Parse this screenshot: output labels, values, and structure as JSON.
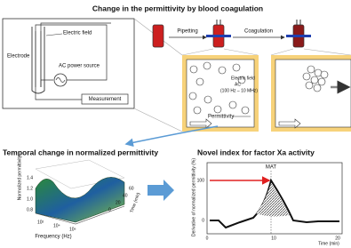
{
  "title": "Change in the permittivity by blood coagulation",
  "circuit": {
    "electric_field": "Electric field",
    "electrode": "Electrode",
    "ac_source": "AC power source",
    "measurement": "Measurement"
  },
  "steps": {
    "pipetting": "Pipetting",
    "coagulation": "Coagulation"
  },
  "panel": {
    "electric_field": "Electric field",
    "ac": "AC",
    "frequency_range": "(100 Hz – 10 MHz)",
    "permittivity": "Permittivity"
  },
  "left_plot": {
    "title": "Temporal change in normalized permittivity",
    "z_label": "Normalized permittivity",
    "z_ticks": [
      "1.4",
      "1.2",
      "1.0",
      "0.8"
    ],
    "x_label": "Frequency (Hz)",
    "x_ticks": [
      "10²",
      "10⁴",
      "10⁶"
    ],
    "y_label": "Time (min)",
    "y_ticks": [
      "60",
      "40",
      "20",
      "0"
    ]
  },
  "right_plot": {
    "title": "Novel index for factor Xa activity",
    "annotation": "MAT",
    "y_label": "Derivative of normalized permittivity (%)",
    "y_ticks": [
      "100",
      "0"
    ],
    "x_label": "Time (min)",
    "x_ticks": [
      "0",
      "10",
      "20"
    ]
  }
}
